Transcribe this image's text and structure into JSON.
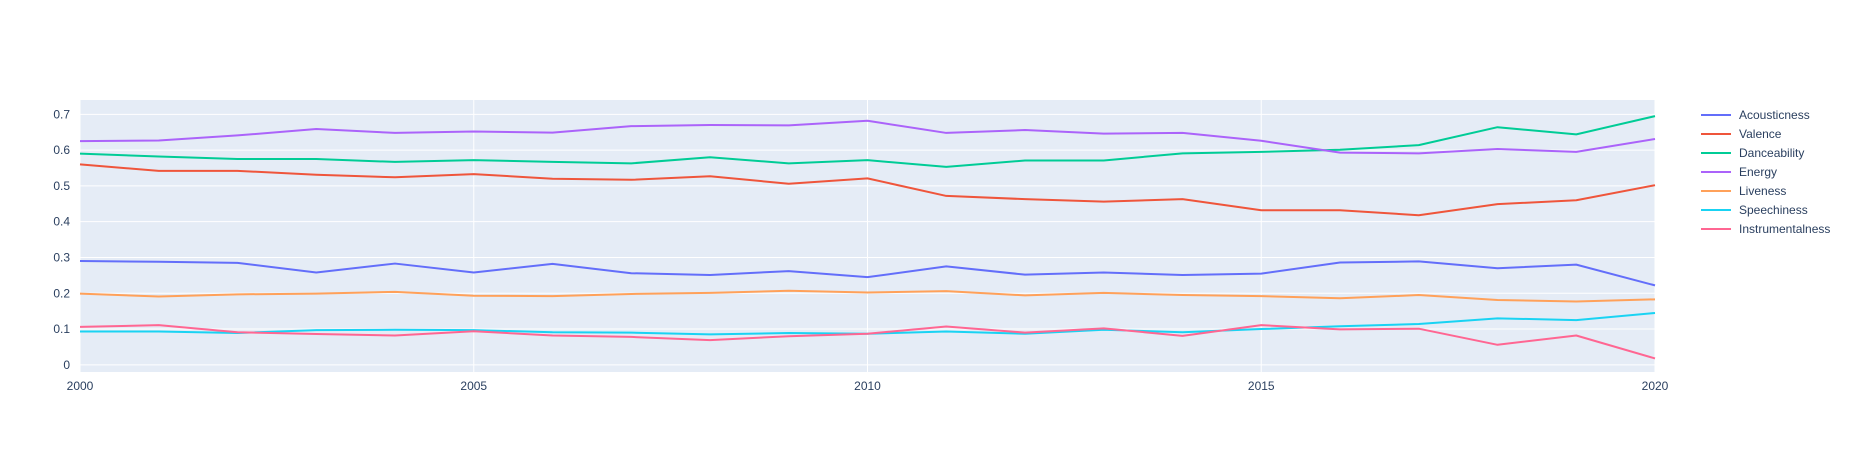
{
  "chart_data": {
    "type": "line",
    "x": [
      2000,
      2001,
      2002,
      2003,
      2004,
      2005,
      2006,
      2007,
      2008,
      2009,
      2010,
      2011,
      2012,
      2013,
      2014,
      2015,
      2016,
      2017,
      2018,
      2019,
      2020
    ],
    "series": [
      {
        "name": "Acousticness",
        "color": "#636efa",
        "values": [
          0.29,
          0.288,
          0.285,
          0.258,
          0.283,
          0.258,
          0.282,
          0.256,
          0.251,
          0.262,
          0.245,
          0.275,
          0.252,
          0.258,
          0.251,
          0.255,
          0.286,
          0.289,
          0.27,
          0.28,
          0.222
        ]
      },
      {
        "name": "Valence",
        "color": "#EF553B",
        "values": [
          0.56,
          0.542,
          0.542,
          0.531,
          0.524,
          0.533,
          0.52,
          0.517,
          0.527,
          0.506,
          0.521,
          0.472,
          0.463,
          0.456,
          0.463,
          0.432,
          0.432,
          0.418,
          0.449,
          0.46,
          0.502
        ]
      },
      {
        "name": "Danceability",
        "color": "#00cc96",
        "values": [
          0.59,
          0.582,
          0.575,
          0.575,
          0.567,
          0.572,
          0.567,
          0.563,
          0.58,
          0.563,
          0.572,
          0.553,
          0.571,
          0.571,
          0.591,
          0.595,
          0.601,
          0.614,
          0.664,
          0.644,
          0.695
        ]
      },
      {
        "name": "Energy",
        "color": "#ab63fa",
        "values": [
          0.625,
          0.627,
          0.641,
          0.659,
          0.648,
          0.652,
          0.649,
          0.667,
          0.67,
          0.669,
          0.682,
          0.648,
          0.656,
          0.646,
          0.648,
          0.626,
          0.593,
          0.591,
          0.603,
          0.595,
          0.631
        ]
      },
      {
        "name": "Liveness",
        "color": "#FFA15A",
        "values": [
          0.199,
          0.191,
          0.197,
          0.199,
          0.204,
          0.193,
          0.192,
          0.198,
          0.201,
          0.207,
          0.202,
          0.206,
          0.194,
          0.201,
          0.195,
          0.192,
          0.186,
          0.195,
          0.181,
          0.177,
          0.183
        ]
      },
      {
        "name": "Speechiness",
        "color": "#19d3f3",
        "values": [
          0.093,
          0.093,
          0.089,
          0.097,
          0.098,
          0.097,
          0.091,
          0.09,
          0.085,
          0.089,
          0.087,
          0.093,
          0.087,
          0.098,
          0.091,
          0.1,
          0.108,
          0.114,
          0.13,
          0.125,
          0.145
        ]
      },
      {
        "name": "Instrumentalness",
        "color": "#FF6692",
        "values": [
          0.106,
          0.111,
          0.091,
          0.086,
          0.082,
          0.094,
          0.082,
          0.078,
          0.069,
          0.08,
          0.087,
          0.107,
          0.09,
          0.102,
          0.081,
          0.111,
          0.099,
          0.101,
          0.056,
          0.082,
          0.018
        ]
      }
    ],
    "xticks": [
      "2000",
      "2005",
      "2010",
      "2015",
      "2020"
    ],
    "yticks": [
      "0",
      "0.1",
      "0.2",
      "0.3",
      "0.4",
      "0.5",
      "0.6",
      "0.7"
    ],
    "xlim": [
      2000,
      2020
    ],
    "ylim": [
      -0.02,
      0.74
    ],
    "title": "",
    "xlabel": "",
    "ylabel": "",
    "grid": true,
    "legend_position": "right",
    "plot_background": "#e5ecf6",
    "grid_color": "#ffffff",
    "text_color": "#2a3f5f"
  }
}
